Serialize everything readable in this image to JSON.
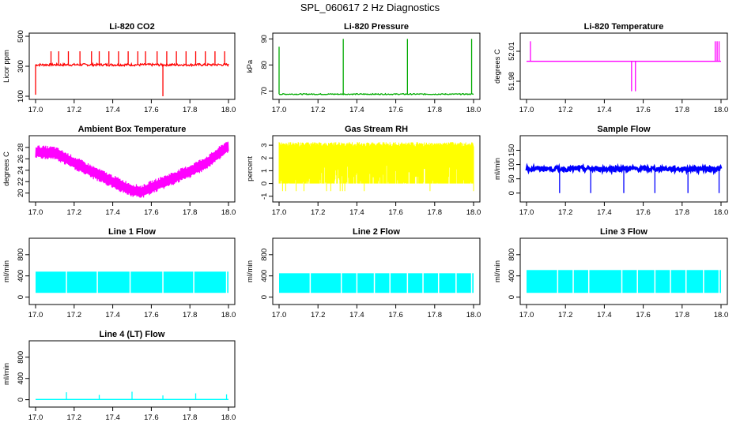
{
  "page_title": "SPL_060617  2 Hz Diagnostics",
  "chart_data": [
    {
      "id": "co2",
      "type": "line",
      "title": "Li-820 CO2",
      "ylabel": "Licor ppm",
      "color": "#ff0000",
      "xlim": [
        17.0,
        18.0
      ],
      "ylim": [
        100,
        500
      ],
      "x_ticks": [
        17.0,
        17.2,
        17.4,
        17.6,
        17.8,
        18.0
      ],
      "y_ticks": [
        100,
        300,
        500
      ],
      "baseline": 310,
      "noise": 8,
      "spikes_up": [
        17.08,
        17.12,
        17.17,
        17.23,
        17.29,
        17.33,
        17.38,
        17.43,
        17.48,
        17.53,
        17.57,
        17.63,
        17.68,
        17.73,
        17.78,
        17.83,
        17.88,
        17.93,
        17.98
      ],
      "spike_up_value": 400,
      "spikes_down": [
        [
          17.0,
          110
        ],
        [
          17.66,
          100
        ]
      ]
    },
    {
      "id": "pressure",
      "type": "line",
      "title": "Li-820 Pressure",
      "ylabel": "kPa",
      "color": "#00aa00",
      "xlim": [
        17.0,
        18.0
      ],
      "ylim": [
        68,
        91
      ],
      "x_ticks": [
        17.0,
        17.2,
        17.4,
        17.6,
        17.8,
        18.0
      ],
      "y_ticks": [
        70,
        80,
        90
      ],
      "baseline": 68.8,
      "noise": 0.2,
      "spikes_up": [
        [
          17.0,
          87
        ],
        [
          17.33,
          90
        ],
        [
          17.66,
          90
        ],
        [
          17.99,
          90
        ]
      ]
    },
    {
      "id": "temperature",
      "type": "line",
      "title": "Li-820 Temperature",
      "ylabel": "degrees C",
      "color": "#ff00ff",
      "xlim": [
        17.0,
        18.0
      ],
      "ylim": [
        51.965,
        52.025
      ],
      "x_ticks": [
        17.0,
        17.2,
        17.4,
        17.6,
        17.8,
        18.0
      ],
      "y_ticks": [
        51.98,
        52.01
      ],
      "y_tick_labels": [
        "51.98",
        "52.01"
      ],
      "baseline": 52.0,
      "spikes_up": [
        [
          17.02,
          52.02
        ],
        [
          17.97,
          52.02
        ],
        [
          17.98,
          52.02
        ],
        [
          17.99,
          52.02
        ]
      ],
      "spikes_down": [
        [
          17.54,
          51.97
        ],
        [
          17.56,
          51.97
        ]
      ]
    },
    {
      "id": "ambient",
      "type": "line",
      "title": "Ambient Box Temperature",
      "ylabel": "degrees C",
      "color": "#ff00ff",
      "xlim": [
        17.0,
        18.0
      ],
      "ylim": [
        19,
        29.5
      ],
      "x_ticks": [
        17.0,
        17.2,
        17.4,
        17.6,
        17.8,
        18.0
      ],
      "y_ticks": [
        20,
        22,
        24,
        26,
        28
      ],
      "curve": [
        [
          17.0,
          27.2
        ],
        [
          17.1,
          27.0
        ],
        [
          17.2,
          25.3
        ],
        [
          17.3,
          23.6
        ],
        [
          17.4,
          22.0
        ],
        [
          17.5,
          20.5
        ],
        [
          17.55,
          20.2
        ],
        [
          17.6,
          21.0
        ],
        [
          17.7,
          22.4
        ],
        [
          17.8,
          23.8
        ],
        [
          17.9,
          25.6
        ],
        [
          18.0,
          28.3
        ]
      ],
      "band": 1.2
    },
    {
      "id": "rh",
      "type": "area",
      "title": "Gas Stream RH",
      "ylabel": "percent",
      "color": "#ffff00",
      "xlim": [
        17.0,
        18.0
      ],
      "ylim": [
        -1.2,
        3.5
      ],
      "x_ticks": [
        17.0,
        17.2,
        17.4,
        17.6,
        17.8,
        18.0
      ],
      "y_ticks": [
        -1,
        0,
        1,
        2,
        3
      ],
      "upper": 3.0,
      "lower": 0.0,
      "min_dips": -0.8
    },
    {
      "id": "sample",
      "type": "line",
      "title": "Sample Flow",
      "ylabel": "ml/min",
      "color": "#0000ff",
      "xlim": [
        17.0,
        18.0
      ],
      "ylim": [
        -20,
        190
      ],
      "x_ticks": [
        17.0,
        17.2,
        17.4,
        17.6,
        17.8,
        18.0
      ],
      "y_ticks": [
        0,
        50,
        100,
        150
      ],
      "baseline": 85,
      "noise": 8,
      "spikes_down": [
        17.17,
        17.33,
        17.5,
        17.66,
        17.83,
        17.99
      ]
    },
    {
      "id": "line1",
      "type": "area",
      "title": "Line 1 Flow",
      "ylabel": "ml/min",
      "color": "#00ffff",
      "xlim": [
        17.0,
        18.0
      ],
      "ylim": [
        -80,
        1050
      ],
      "x_ticks": [
        17.0,
        17.2,
        17.4,
        17.6,
        17.8,
        18.0
      ],
      "y_ticks": [
        0,
        400,
        800
      ],
      "upper": 480,
      "lower": 80,
      "gaps": [
        17.16,
        17.32,
        17.49,
        17.66,
        17.82,
        17.99
      ]
    },
    {
      "id": "line2",
      "type": "area",
      "title": "Line 2 Flow",
      "ylabel": "ml/min",
      "color": "#00ffff",
      "xlim": [
        17.0,
        18.0
      ],
      "ylim": [
        -80,
        1050
      ],
      "x_ticks": [
        17.0,
        17.2,
        17.4,
        17.6,
        17.8,
        18.0
      ],
      "y_ticks": [
        0,
        400,
        800
      ],
      "upper": 450,
      "lower": 80,
      "gaps": [
        17.16,
        17.32,
        17.4,
        17.49,
        17.57,
        17.66,
        17.74,
        17.82,
        17.91,
        17.99
      ]
    },
    {
      "id": "line3",
      "type": "area",
      "title": "Line 3 Flow",
      "ylabel": "ml/min",
      "color": "#00ffff",
      "xlim": [
        17.0,
        18.0
      ],
      "ylim": [
        -80,
        1050
      ],
      "x_ticks": [
        17.0,
        17.2,
        17.4,
        17.6,
        17.8,
        18.0
      ],
      "y_ticks": [
        0,
        400,
        800
      ],
      "upper": 510,
      "lower": 80,
      "gaps": [
        17.16,
        17.24,
        17.32,
        17.49,
        17.57,
        17.66,
        17.74,
        17.82,
        17.91,
        17.99
      ]
    },
    {
      "id": "line4",
      "type": "line",
      "title": "Line 4 (LT) Flow",
      "ylabel": "ml/min",
      "color": "#00ffff",
      "xlim": [
        17.0,
        18.0
      ],
      "ylim": [
        -80,
        1050
      ],
      "x_ticks": [
        17.0,
        17.2,
        17.4,
        17.6,
        17.8,
        18.0
      ],
      "y_ticks": [
        0,
        400,
        800
      ],
      "baseline": 5,
      "spikes_up": [
        [
          17.16,
          140
        ],
        [
          17.33,
          90
        ],
        [
          17.5,
          150
        ],
        [
          17.66,
          80
        ],
        [
          17.83,
          120
        ],
        [
          17.99,
          100
        ]
      ]
    }
  ]
}
